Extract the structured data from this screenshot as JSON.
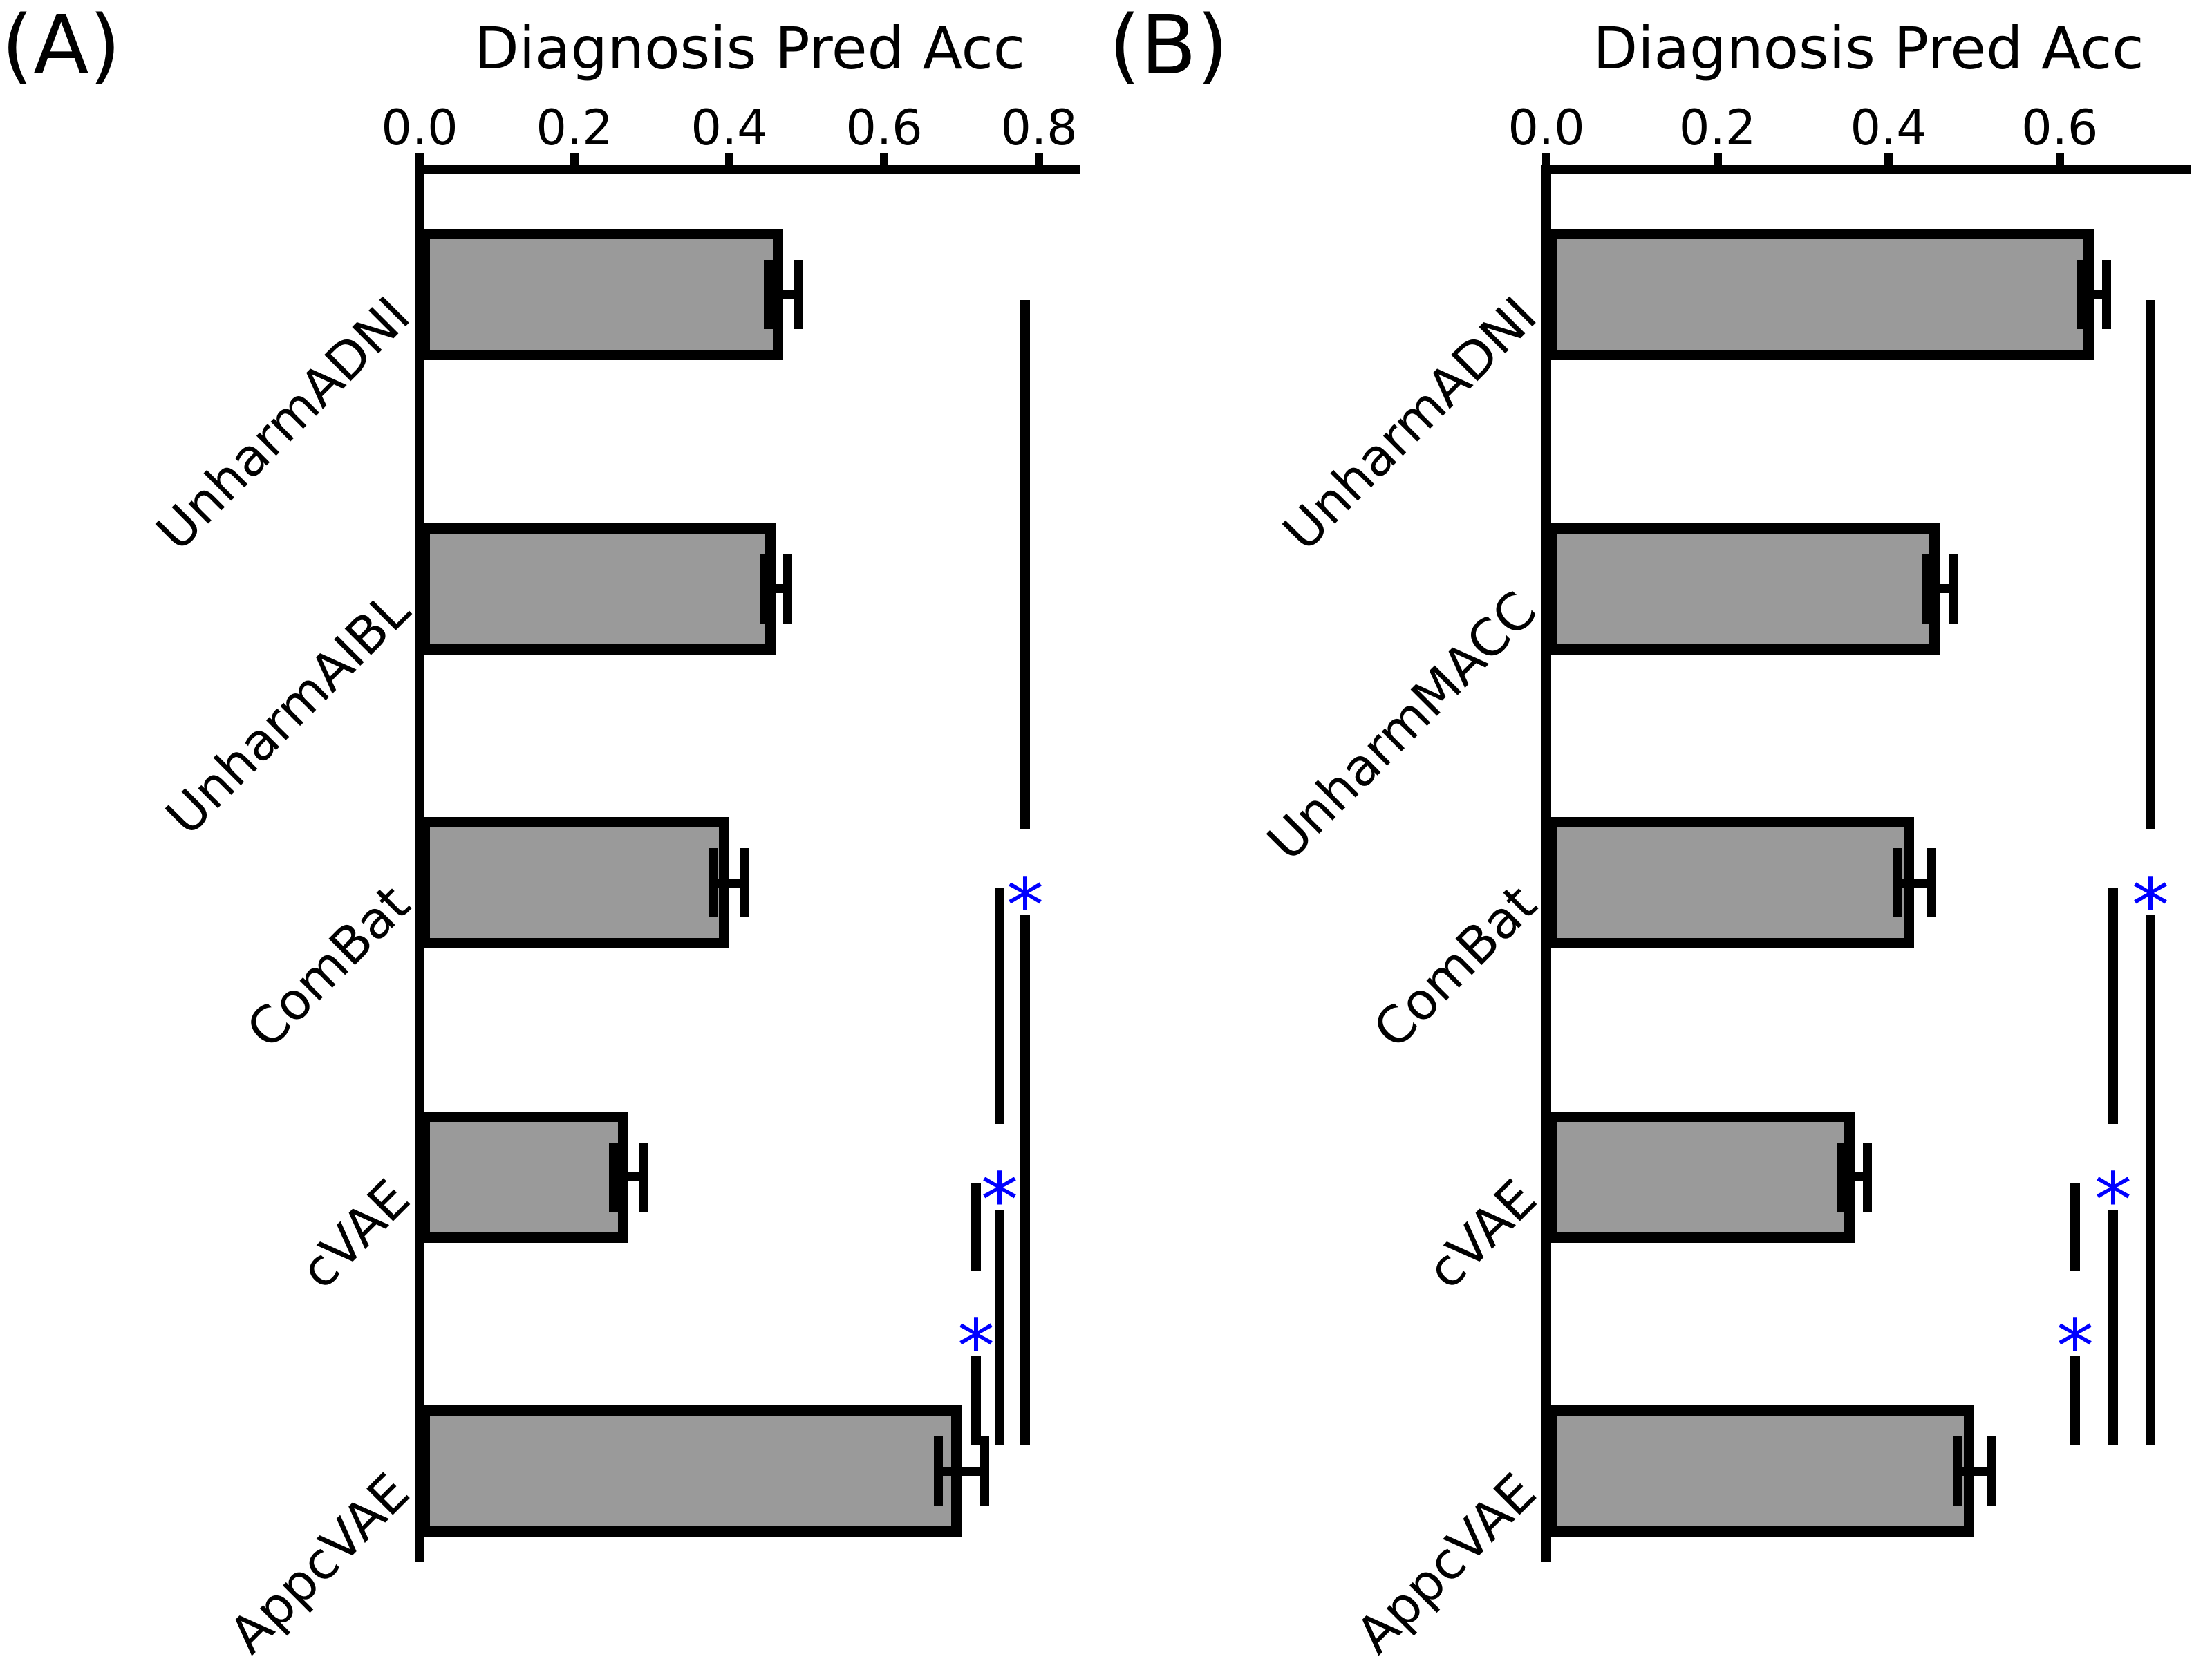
{
  "figure": {
    "background": "#ffffff",
    "axis_color": "#000000",
    "bar_fill": "#9a9a9a",
    "bar_edge": "#000000",
    "significance_color": "#0000ff"
  },
  "chart_data": [
    {
      "type": "bar",
      "orientation": "horizontal",
      "panel_label": "(A)",
      "title": "Diagnosis Pred Acc",
      "xlabel": "",
      "grid": false,
      "categories": [
        "UnharmADNI",
        "UnharmAIBL",
        "ComBat",
        "cVAE",
        "AppcVAE"
      ],
      "values": [
        0.47,
        0.46,
        0.4,
        0.27,
        0.7
      ],
      "errors": [
        0.02,
        0.015,
        0.02,
        0.02,
        0.03
      ],
      "x_ticks": [
        "0.0",
        "0.2",
        "0.4",
        "0.6",
        "0.8"
      ],
      "xlim": [
        0,
        0.85
      ],
      "significance": [
        {
          "between": [
            "UnharmADNI",
            "AppcVAE"
          ],
          "marker": "*"
        },
        {
          "between": [
            "ComBat",
            "AppcVAE"
          ],
          "marker": "*"
        },
        {
          "between": [
            "cVAE",
            "AppcVAE"
          ],
          "marker": "*"
        }
      ]
    },
    {
      "type": "bar",
      "orientation": "horizontal",
      "panel_label": "(B)",
      "title": "Diagnosis Pred Acc",
      "xlabel": "",
      "grid": false,
      "categories": [
        "UnharmADNI",
        "UnharmMACC",
        "ComBat",
        "cVAE",
        "AppcVAE"
      ],
      "values": [
        0.64,
        0.46,
        0.43,
        0.36,
        0.5
      ],
      "errors": [
        0.015,
        0.015,
        0.02,
        0.015,
        0.02
      ],
      "x_ticks": [
        "0.0",
        "0.2",
        "0.4",
        "0.6"
      ],
      "xlim": [
        0,
        0.75
      ],
      "significance": [
        {
          "between": [
            "UnharmADNI",
            "AppcVAE"
          ],
          "marker": "*"
        },
        {
          "between": [
            "ComBat",
            "AppcVAE"
          ],
          "marker": "*"
        },
        {
          "between": [
            "cVAE",
            "AppcVAE"
          ],
          "marker": "*"
        }
      ]
    }
  ]
}
